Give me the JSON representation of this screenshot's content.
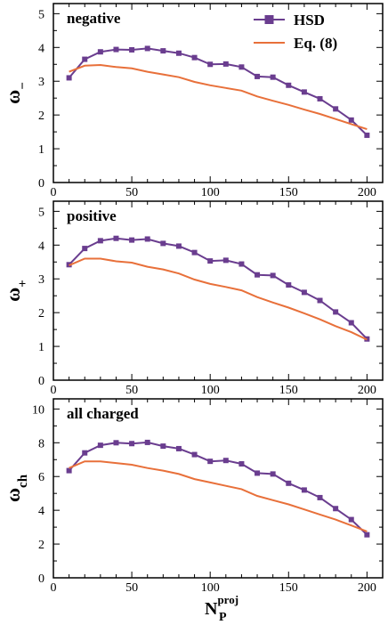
{
  "chart_data": [
    {
      "type": "line",
      "panel_label": "negative",
      "ylabel_main": "ω",
      "ylabel_sub": "−",
      "xlabel_main": "",
      "xlabel_sub": "",
      "xlabel_sup": "",
      "xlim": [
        0,
        210
      ],
      "ylim": [
        0,
        5.3
      ],
      "xticks": [
        0,
        50,
        100,
        150,
        200
      ],
      "yticks": [
        0,
        1,
        2,
        3,
        4,
        5
      ],
      "grid": false,
      "legend": {
        "placement": "top-right",
        "entries": [
          "HSD",
          "Eq. (8)"
        ]
      },
      "series": [
        {
          "name": "HSD",
          "color": "#6a3d8f",
          "marker": "square",
          "x": [
            10,
            20,
            30,
            40,
            50,
            60,
            70,
            80,
            90,
            100,
            110,
            120,
            130,
            140,
            150,
            160,
            170,
            180,
            190,
            200
          ],
          "y": [
            3.1,
            3.65,
            3.87,
            3.94,
            3.93,
            3.97,
            3.9,
            3.83,
            3.7,
            3.5,
            3.51,
            3.42,
            3.14,
            3.12,
            2.88,
            2.68,
            2.48,
            2.18,
            1.85,
            1.4
          ]
        },
        {
          "name": "Eq. (8)",
          "color": "#e8703a",
          "marker": "none",
          "x": [
            10,
            20,
            30,
            40,
            50,
            60,
            70,
            80,
            90,
            100,
            110,
            120,
            130,
            140,
            150,
            160,
            170,
            180,
            190,
            200
          ],
          "y": [
            3.28,
            3.46,
            3.48,
            3.42,
            3.38,
            3.28,
            3.2,
            3.12,
            2.98,
            2.88,
            2.8,
            2.72,
            2.55,
            2.42,
            2.3,
            2.16,
            2.03,
            1.88,
            1.73,
            1.58
          ]
        }
      ]
    },
    {
      "type": "line",
      "panel_label": "positive",
      "ylabel_main": "ω",
      "ylabel_sub": "+",
      "xlabel_main": "",
      "xlabel_sub": "",
      "xlabel_sup": "",
      "xlim": [
        0,
        210
      ],
      "ylim": [
        0,
        5.3
      ],
      "xticks": [
        0,
        50,
        100,
        150,
        200
      ],
      "yticks": [
        0,
        1,
        2,
        3,
        4,
        5
      ],
      "grid": false,
      "series": [
        {
          "name": "HSD",
          "color": "#6a3d8f",
          "marker": "square",
          "x": [
            10,
            20,
            30,
            40,
            50,
            60,
            70,
            80,
            90,
            100,
            110,
            120,
            130,
            140,
            150,
            160,
            170,
            180,
            190,
            200
          ],
          "y": [
            3.42,
            3.9,
            4.13,
            4.2,
            4.15,
            4.18,
            4.05,
            3.97,
            3.78,
            3.53,
            3.55,
            3.44,
            3.12,
            3.1,
            2.82,
            2.6,
            2.36,
            2.02,
            1.7,
            1.22
          ]
        },
        {
          "name": "Eq. (8)",
          "color": "#e8703a",
          "marker": "none",
          "x": [
            10,
            20,
            30,
            40,
            50,
            60,
            70,
            80,
            90,
            100,
            110,
            120,
            130,
            140,
            150,
            160,
            170,
            180,
            190,
            200
          ],
          "y": [
            3.4,
            3.6,
            3.6,
            3.52,
            3.48,
            3.36,
            3.28,
            3.16,
            2.98,
            2.85,
            2.76,
            2.66,
            2.46,
            2.3,
            2.15,
            1.98,
            1.8,
            1.6,
            1.42,
            1.2
          ]
        }
      ]
    },
    {
      "type": "line",
      "panel_label": "all charged",
      "ylabel_main": "ω",
      "ylabel_sub": "ch",
      "xlabel_main": "N",
      "xlabel_sub": "P",
      "xlabel_sup": "proj",
      "xlim": [
        0,
        210
      ],
      "ylim": [
        0,
        10.6
      ],
      "xticks": [
        0,
        50,
        100,
        150,
        200
      ],
      "yticks": [
        0,
        2,
        4,
        6,
        8,
        10
      ],
      "grid": false,
      "series": [
        {
          "name": "HSD",
          "color": "#6a3d8f",
          "marker": "square",
          "x": [
            10,
            20,
            30,
            40,
            50,
            60,
            70,
            80,
            90,
            100,
            110,
            120,
            130,
            140,
            150,
            160,
            170,
            180,
            190,
            200
          ],
          "y": [
            6.35,
            7.4,
            7.85,
            8.0,
            7.95,
            8.02,
            7.8,
            7.65,
            7.3,
            6.9,
            6.95,
            6.75,
            6.2,
            6.15,
            5.6,
            5.2,
            4.75,
            4.1,
            3.45,
            2.55
          ]
        },
        {
          "name": "Eq. (8)",
          "color": "#e8703a",
          "marker": "none",
          "x": [
            10,
            20,
            30,
            40,
            50,
            60,
            70,
            80,
            90,
            100,
            110,
            120,
            130,
            140,
            150,
            160,
            170,
            180,
            190,
            200
          ],
          "y": [
            6.5,
            6.9,
            6.9,
            6.8,
            6.7,
            6.5,
            6.35,
            6.15,
            5.85,
            5.65,
            5.45,
            5.25,
            4.85,
            4.6,
            4.35,
            4.05,
            3.75,
            3.45,
            3.1,
            2.75
          ]
        }
      ]
    }
  ]
}
